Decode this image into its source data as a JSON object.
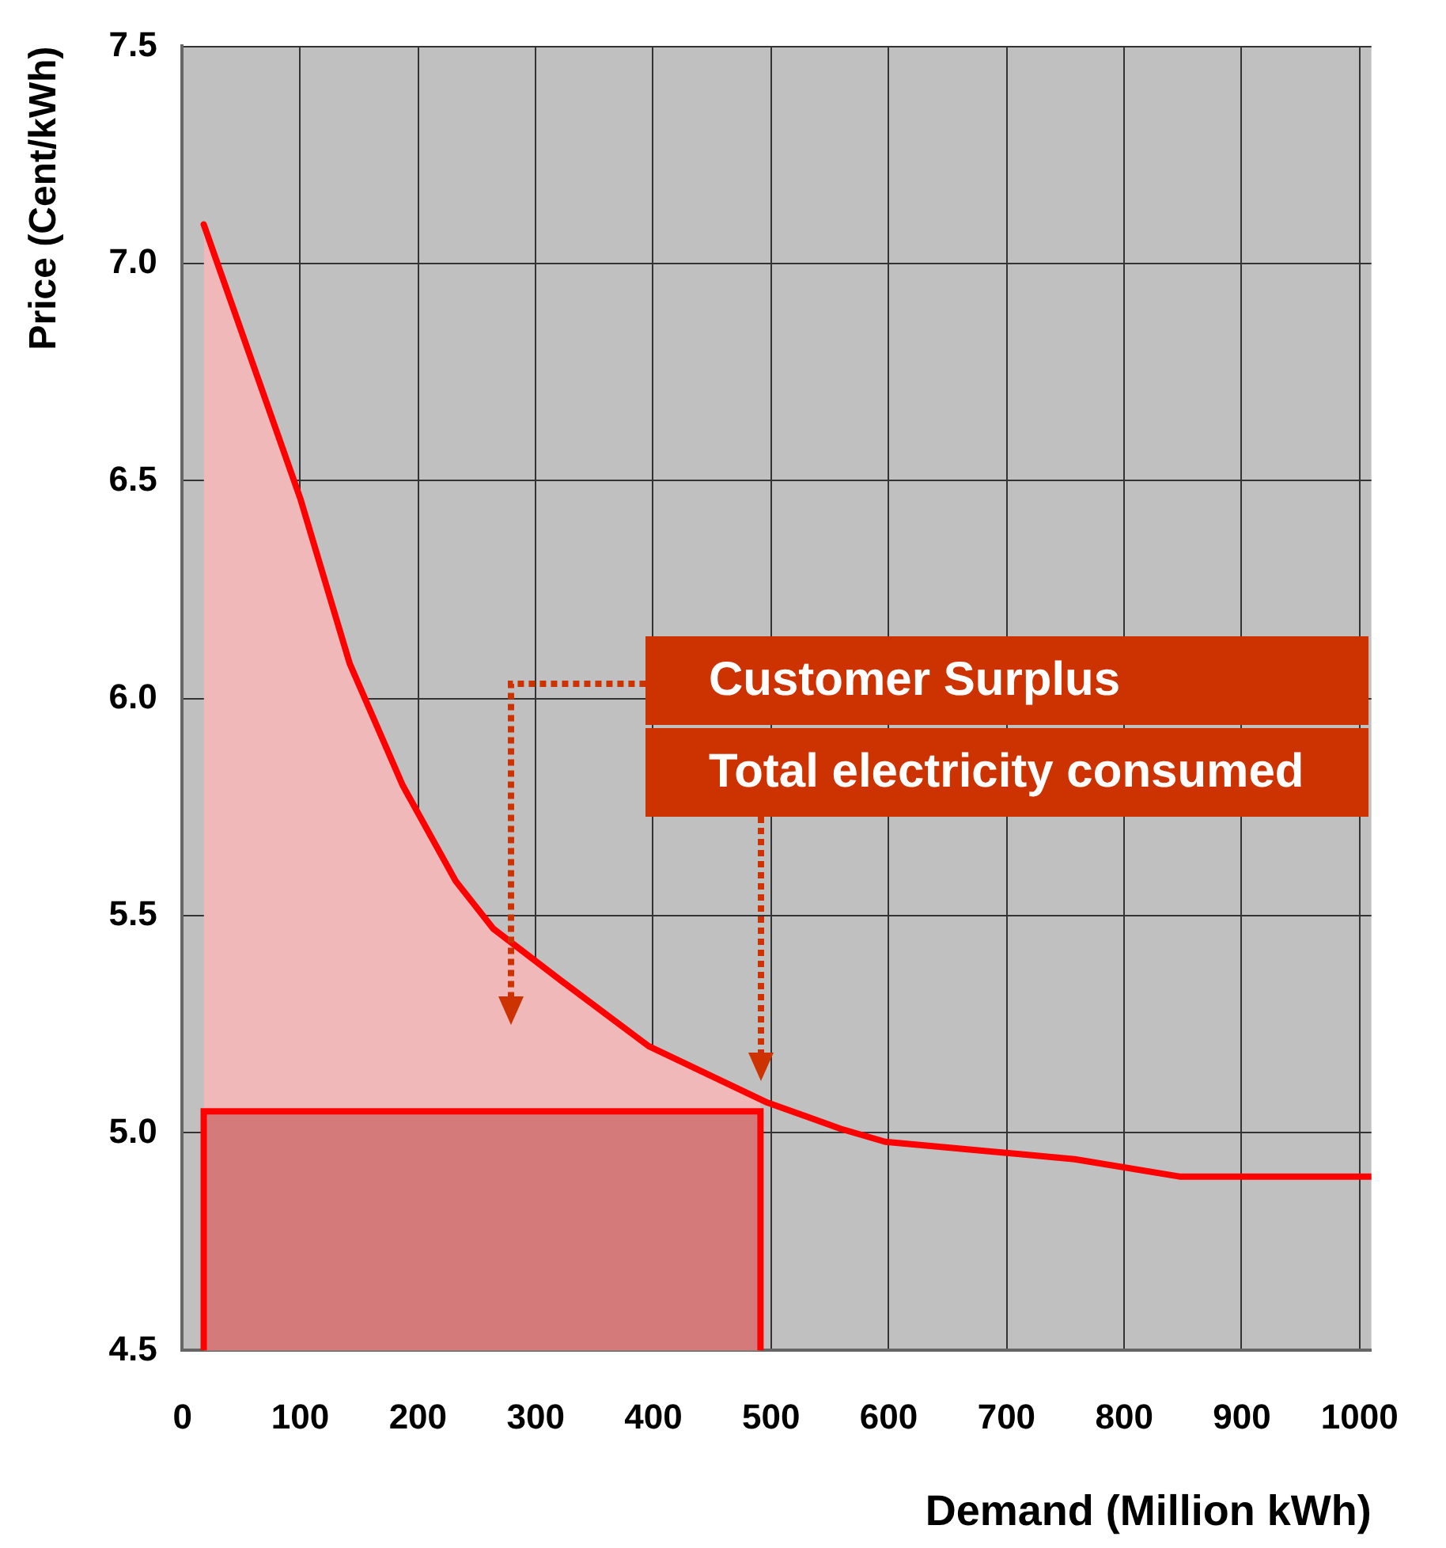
{
  "chart_data": {
    "type": "line",
    "xlabel": "Demand (Million kWh)",
    "ylabel": "Price (Cent/kWh)",
    "xlim": [
      0,
      1010
    ],
    "xticks": [
      0,
      100,
      200,
      300,
      400,
      500,
      600,
      700,
      800,
      900,
      1000
    ],
    "ylim": [
      4.5,
      7.5
    ],
    "yticks": [
      4.5,
      {
        "value": 5,
        "label": "5.0"
      },
      5.5,
      {
        "value": 6,
        "label": "6.0"
      },
      6.5,
      {
        "value": 7,
        "label": "7.0"
      },
      7.5
    ],
    "grid": true,
    "legend": false,
    "marker": "none",
    "line_style": "solid",
    "series": [
      {
        "type": "area",
        "color": "#d47a7a",
        "x": [
          18,
          18,
          491,
          491
        ],
        "values": [
          4.5,
          5.05,
          5.05,
          4.5
        ]
      },
      {
        "type": "area",
        "color": "#f0b8b8",
        "x": [
          18,
          100,
          142,
          187,
          232,
          264,
          322,
          396,
          491
        ],
        "values": [
          7.09,
          6.46,
          6.08,
          5.8,
          5.58,
          5.47,
          5.35,
          5.2,
          5.07
        ]
      },
      {
        "type": "line",
        "color": "#ff0000",
        "x": [
          18,
          100,
          142,
          187,
          232,
          264,
          322,
          396,
          497,
          559,
          597,
          758,
          847,
          1010
        ],
        "values": [
          7.09,
          6.46,
          6.08,
          5.8,
          5.58,
          5.47,
          5.35,
          5.2,
          5.07,
          5.01,
          4.98,
          4.94,
          4.9,
          4.9
        ]
      }
    ],
    "annotations": [
      "Customer Surplus",
      "Total electricity consumed"
    ]
  }
}
